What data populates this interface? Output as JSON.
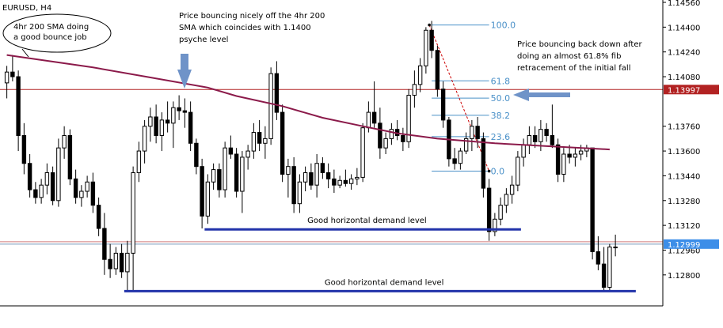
{
  "symbol_label": "EURUSD, H4",
  "colors": {
    "background": "#ffffff",
    "candle_outline": "#000000",
    "candle_bear_fill": "#000000",
    "candle_bull_fill": "#ffffff",
    "sma": "#8b1a4a",
    "price_line": "#b22222",
    "bid_line": "#7799bb",
    "demand_line": "#2233aa",
    "fib": "#4a90c8",
    "fib_diagonal": "#cc0000",
    "annotation_arrow": "#6f93c8",
    "axis_text": "#000000",
    "price_tag_red": "#b22222",
    "price_tag_blue": "#3d8ee8"
  },
  "chart_data": {
    "type": "candlestick",
    "title": "EURUSD, H4",
    "ylim": [
      1.126,
      1.1456
    ],
    "y_ticks": [
      {
        "value": 1.1456,
        "label": "1.14560"
      },
      {
        "value": 1.144,
        "label": "1.14400"
      },
      {
        "value": 1.1424,
        "label": "1.14240"
      },
      {
        "value": 1.1408,
        "label": "1.14080"
      },
      {
        "value": 1.1376,
        "label": "1.13760"
      },
      {
        "value": 1.136,
        "label": "1.13600"
      },
      {
        "value": 1.1344,
        "label": "1.13440"
      },
      {
        "value": 1.1328,
        "label": "1.13280"
      },
      {
        "value": 1.1312,
        "label": "1.13120"
      },
      {
        "value": 1.1296,
        "label": "1.12960"
      },
      {
        "value": 1.128,
        "label": "1.12800"
      }
    ],
    "candles": [
      [
        1.1404,
        1.1415,
        1.1394,
        1.1411
      ],
      [
        1.1411,
        1.1422,
        1.1405,
        1.1408
      ],
      [
        1.1408,
        1.1412,
        1.136,
        1.137
      ],
      [
        1.137,
        1.1378,
        1.1345,
        1.1352
      ],
      [
        1.1352,
        1.1358,
        1.133,
        1.1335
      ],
      [
        1.1335,
        1.134,
        1.1326,
        1.133
      ],
      [
        1.133,
        1.1342,
        1.1326,
        1.1338
      ],
      [
        1.1338,
        1.1352,
        1.1332,
        1.1346
      ],
      [
        1.1346,
        1.135,
        1.1325,
        1.1328
      ],
      [
        1.1328,
        1.1368,
        1.1324,
        1.1362
      ],
      [
        1.1362,
        1.1376,
        1.1355,
        1.137
      ],
      [
        1.137,
        1.1374,
        1.1338,
        1.1342
      ],
      [
        1.1342,
        1.1348,
        1.1326,
        1.133
      ],
      [
        1.133,
        1.1338,
        1.1324,
        1.1334
      ],
      [
        1.1334,
        1.1344,
        1.133,
        1.134
      ],
      [
        1.134,
        1.1346,
        1.132,
        1.1325
      ],
      [
        1.1325,
        1.133,
        1.1305,
        1.131
      ],
      [
        1.131,
        1.132,
        1.128,
        1.129
      ],
      [
        1.129,
        1.13,
        1.1278,
        1.1284
      ],
      [
        1.1284,
        1.1298,
        1.128,
        1.1294
      ],
      [
        1.1294,
        1.13,
        1.1278,
        1.1282
      ],
      [
        1.1282,
        1.1302,
        1.127,
        1.1294
      ],
      [
        1.1294,
        1.135,
        1.127,
        1.1346
      ],
      [
        1.1346,
        1.1366,
        1.134,
        1.136
      ],
      [
        1.136,
        1.138,
        1.1352,
        1.1376
      ],
      [
        1.1376,
        1.1388,
        1.1366,
        1.1382
      ],
      [
        1.1382,
        1.139,
        1.1365,
        1.137
      ],
      [
        1.137,
        1.1385,
        1.136,
        1.138
      ],
      [
        1.138,
        1.1392,
        1.1372,
        1.1378
      ],
      [
        1.1378,
        1.1392,
        1.1362,
        1.1388
      ],
      [
        1.1388,
        1.1396,
        1.138,
        1.1386
      ],
      [
        1.1386,
        1.1394,
        1.1375,
        1.1385
      ],
      [
        1.1385,
        1.1392,
        1.136,
        1.1365
      ],
      [
        1.1365,
        1.1368,
        1.1345,
        1.135
      ],
      [
        1.135,
        1.1355,
        1.131,
        1.1318
      ],
      [
        1.1318,
        1.1345,
        1.1313,
        1.134
      ],
      [
        1.134,
        1.1352,
        1.1335,
        1.1348
      ],
      [
        1.1348,
        1.1352,
        1.133,
        1.1335
      ],
      [
        1.1335,
        1.1366,
        1.133,
        1.1362
      ],
      [
        1.1362,
        1.137,
        1.1355,
        1.1358
      ],
      [
        1.1358,
        1.1362,
        1.133,
        1.1334
      ],
      [
        1.1334,
        1.136,
        1.132,
        1.1356
      ],
      [
        1.1356,
        1.1364,
        1.1348,
        1.136
      ],
      [
        1.136,
        1.1378,
        1.1355,
        1.1372
      ],
      [
        1.1372,
        1.138,
        1.136,
        1.1365
      ],
      [
        1.1365,
        1.1376,
        1.1355,
        1.1368
      ],
      [
        1.1368,
        1.1414,
        1.1364,
        1.141
      ],
      [
        1.141,
        1.1418,
        1.138,
        1.1385
      ],
      [
        1.1385,
        1.139,
        1.134,
        1.1345
      ],
      [
        1.1345,
        1.1355,
        1.133,
        1.135
      ],
      [
        1.135,
        1.1356,
        1.132,
        1.1326
      ],
      [
        1.1326,
        1.1345,
        1.132,
        1.134
      ],
      [
        1.134,
        1.135,
        1.1334,
        1.1346
      ],
      [
        1.1346,
        1.1352,
        1.1335,
        1.1338
      ],
      [
        1.1338,
        1.1358,
        1.133,
        1.1352
      ],
      [
        1.1352,
        1.1356,
        1.1342,
        1.1346
      ],
      [
        1.1346,
        1.1352,
        1.1336,
        1.1342
      ],
      [
        1.1342,
        1.1348,
        1.1333,
        1.1338
      ],
      [
        1.1338,
        1.1344,
        1.1336,
        1.1341
      ],
      [
        1.1341,
        1.1348,
        1.1337,
        1.1339
      ],
      [
        1.1339,
        1.1345,
        1.1335,
        1.1342
      ],
      [
        1.1342,
        1.1349,
        1.1338,
        1.1343
      ],
      [
        1.1343,
        1.1378,
        1.134,
        1.1375
      ],
      [
        1.1375,
        1.1392,
        1.1372,
        1.1385
      ],
      [
        1.1385,
        1.1405,
        1.1375,
        1.1378
      ],
      [
        1.1378,
        1.1388,
        1.1355,
        1.1362
      ],
      [
        1.1362,
        1.1372,
        1.1358,
        1.1368
      ],
      [
        1.1368,
        1.1378,
        1.1364,
        1.1374
      ],
      [
        1.1374,
        1.138,
        1.1367,
        1.137
      ],
      [
        1.137,
        1.1375,
        1.136,
        1.1366
      ],
      [
        1.1366,
        1.14,
        1.1362,
        1.1396
      ],
      [
        1.1396,
        1.1412,
        1.1388,
        1.1403
      ],
      [
        1.1403,
        1.142,
        1.1398,
        1.1415
      ],
      [
        1.1415,
        1.144,
        1.141,
        1.1438
      ],
      [
        1.1438,
        1.1444,
        1.142,
        1.1425
      ],
      [
        1.1425,
        1.1428,
        1.1395,
        1.14
      ],
      [
        1.14,
        1.1405,
        1.1375,
        1.138
      ],
      [
        1.138,
        1.1382,
        1.135,
        1.1355
      ],
      [
        1.1355,
        1.1362,
        1.1348,
        1.1352
      ],
      [
        1.1352,
        1.1362,
        1.1348,
        1.136
      ],
      [
        1.136,
        1.1372,
        1.1358,
        1.1368
      ],
      [
        1.1368,
        1.138,
        1.136,
        1.1376
      ],
      [
        1.1376,
        1.1382,
        1.1362,
        1.1368
      ],
      [
        1.1368,
        1.1372,
        1.133,
        1.1336
      ],
      [
        1.1336,
        1.1342,
        1.1302,
        1.1308
      ],
      [
        1.1308,
        1.132,
        1.1305,
        1.1316
      ],
      [
        1.1316,
        1.133,
        1.1312,
        1.1325
      ],
      [
        1.1325,
        1.1336,
        1.132,
        1.1332
      ],
      [
        1.1332,
        1.1344,
        1.1326,
        1.1338
      ],
      [
        1.1338,
        1.136,
        1.1334,
        1.1356
      ],
      [
        1.1356,
        1.1368,
        1.135,
        1.1364
      ],
      [
        1.1364,
        1.1376,
        1.1358,
        1.137
      ],
      [
        1.137,
        1.1376,
        1.1362,
        1.1366
      ],
      [
        1.1366,
        1.138,
        1.136,
        1.1374
      ],
      [
        1.1374,
        1.1378,
        1.1366,
        1.137
      ],
      [
        1.137,
        1.139,
        1.1362,
        1.1364
      ],
      [
        1.1364,
        1.1368,
        1.134,
        1.1345
      ],
      [
        1.1345,
        1.1362,
        1.134,
        1.1358
      ],
      [
        1.1358,
        1.1364,
        1.1352,
        1.1356
      ],
      [
        1.1356,
        1.1362,
        1.135,
        1.1358
      ],
      [
        1.1358,
        1.1364,
        1.1354,
        1.136
      ],
      [
        1.136,
        1.1364,
        1.1356,
        1.1362
      ],
      [
        1.1362,
        1.1362,
        1.129,
        1.1295
      ],
      [
        1.1295,
        1.1305,
        1.1283,
        1.1287
      ],
      [
        1.1287,
        1.1298,
        1.127,
        1.1272
      ],
      [
        1.1272,
        1.13,
        1.127,
        1.1298
      ],
      [
        1.1298,
        1.1306,
        1.1292,
        1.1298
      ]
    ],
    "sma_label": "4hr 200 SMA",
    "sma": [
      [
        0,
        1.1422
      ],
      [
        15,
        1.1414
      ],
      [
        25,
        1.14075
      ],
      [
        35,
        1.1401
      ],
      [
        40,
        1.13955
      ],
      [
        48,
        1.1389
      ],
      [
        55,
        1.13815
      ],
      [
        62,
        1.1376
      ],
      [
        68,
        1.13715
      ],
      [
        75,
        1.1368
      ],
      [
        85,
        1.1365
      ],
      [
        95,
        1.1363
      ],
      [
        105,
        1.1361
      ]
    ],
    "horizontal_lines": [
      {
        "name": "current-price",
        "value": 1.13997,
        "label": "1.13997"
      },
      {
        "name": "bid",
        "value": 1.12999,
        "label": "1.12999"
      }
    ],
    "demand_levels": [
      {
        "value": 1.13094,
        "from": 35,
        "to": 89,
        "label": "Good horizontal demand level"
      },
      {
        "value": 1.12695,
        "from": 21,
        "to": 109,
        "label": "Good horizontal demand level"
      }
    ],
    "fibonacci": {
      "from": 74,
      "to": 84,
      "high": 1.14414,
      "low": 1.1347,
      "levels": [
        {
          "ratio": 1.0,
          "label": "100.0"
        },
        {
          "ratio": 0.618,
          "label": "61.8"
        },
        {
          "ratio": 0.5,
          "label": "50.0"
        },
        {
          "ratio": 0.382,
          "label": "38.2"
        },
        {
          "ratio": 0.236,
          "label": "23.6"
        },
        {
          "ratio": 0.0,
          "label": "0.0"
        }
      ]
    },
    "annotations": [
      {
        "name": "sma-callout",
        "lines": [
          "4hr 200 SMA doing",
          "a good bounce job"
        ]
      },
      {
        "name": "sma-bounce-note",
        "lines": [
          "Price bouncing nicely off the 4hr 200",
          "SMA which coincides with 1.1400",
          "psyche level"
        ]
      },
      {
        "name": "fib-retracement-note",
        "lines": [
          "Price bouncing back down after",
          "doing an almost 61.8% fib",
          "retracement of the initial fall"
        ]
      }
    ]
  }
}
